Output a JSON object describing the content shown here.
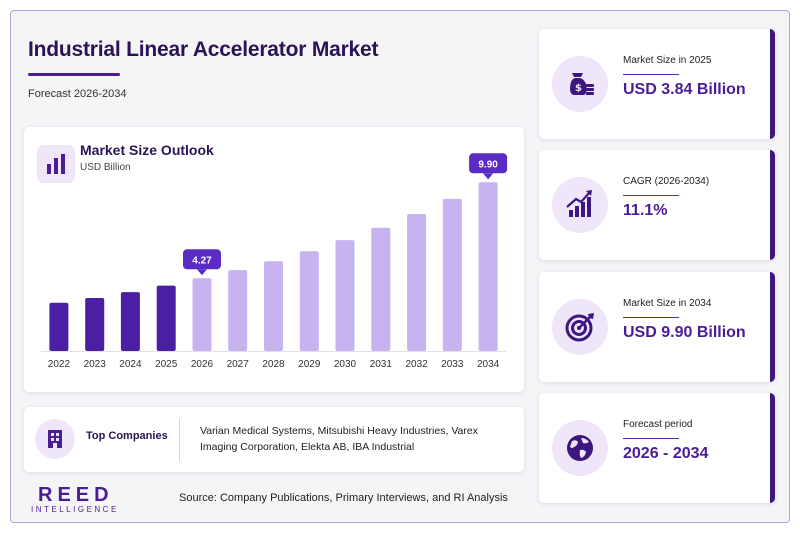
{
  "header": {
    "title": "Industrial Linear Accelerator Market",
    "subtitle": "Forecast 2026-2034"
  },
  "chart_data": {
    "type": "bar",
    "title": "Market Size Outlook",
    "unit_label": "USD Billion",
    "categories": [
      "2022",
      "2023",
      "2024",
      "2025",
      "2026",
      "2027",
      "2028",
      "2029",
      "2030",
      "2031",
      "2032",
      "2033",
      "2034"
    ],
    "values": [
      2.83,
      3.11,
      3.46,
      3.84,
      4.27,
      4.75,
      5.27,
      5.86,
      6.51,
      7.24,
      8.04,
      8.93,
      9.9
    ],
    "series_status": [
      "historical",
      "historical",
      "historical",
      "historical",
      "forecast",
      "forecast",
      "forecast",
      "forecast",
      "forecast",
      "forecast",
      "forecast",
      "forecast",
      "forecast"
    ],
    "callouts": [
      {
        "category": "2026",
        "label": "4.27"
      },
      {
        "category": "2034",
        "label": "9.90"
      }
    ],
    "ylim": [
      0,
      10.8
    ],
    "grid": false,
    "colors": {
      "historical": "#4a1fa3",
      "forecast": "#c6b3ef",
      "callout": "#5b2bc5"
    }
  },
  "companies": {
    "label": "Top Companies",
    "text": "Varian Medical Systems, Mitsubishi Heavy Industries, Varex Imaging Corporation, Elekta AB, IBA Industrial"
  },
  "logo": {
    "main": "REED",
    "sub": "INTELLIGENCE"
  },
  "source": "Source: Company Publications, Primary Interviews, and RI Analysis",
  "stats": [
    {
      "label": "Market Size in 2025",
      "value": "USD 3.84 Billion",
      "icon": "money-bag-icon"
    },
    {
      "label": "CAGR (2026-2034)",
      "value": "11.1%",
      "icon": "growth-chart-icon"
    },
    {
      "label": "Market Size in 2034",
      "value": "USD 9.90 Billion",
      "icon": "target-icon"
    },
    {
      "label": "Forecast period",
      "value": "2026 - 2034",
      "icon": "globe-icon"
    }
  ]
}
